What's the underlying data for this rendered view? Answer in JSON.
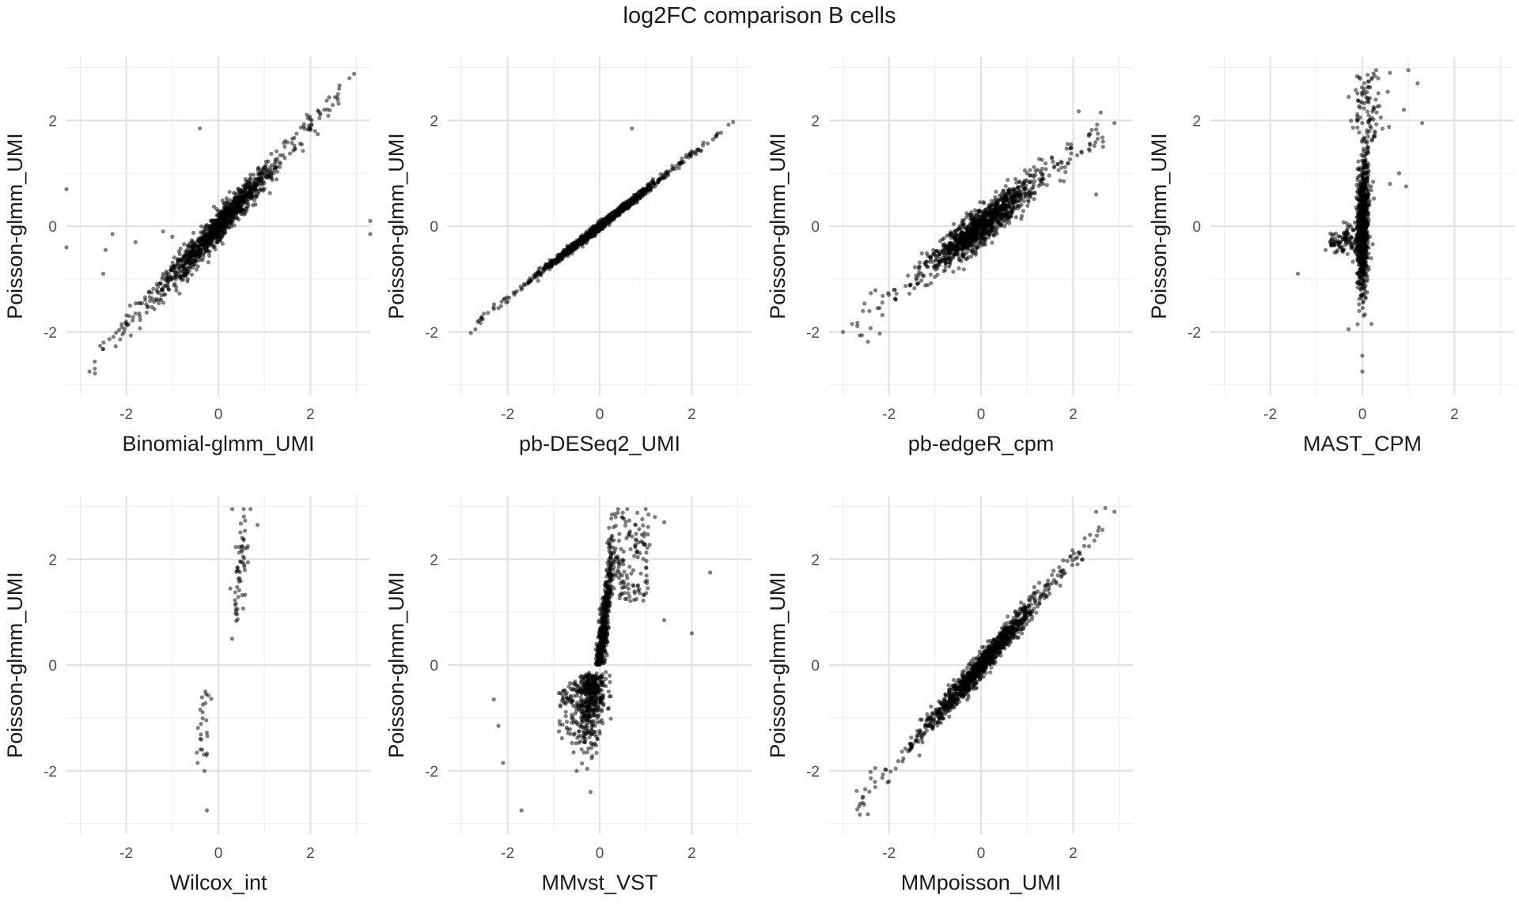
{
  "figure": {
    "title": "log2FC comparison B cells"
  },
  "chart_data": [
    {
      "type": "scatter",
      "xlabel": "Binomial-glmm_UMI",
      "ylabel": "Poisson-glmm_UMI",
      "xlim": [
        -3.3,
        3.3
      ],
      "ylim": [
        -3.2,
        3.2
      ],
      "xticks": [
        -2,
        0,
        2
      ],
      "yticks": [
        -2,
        0,
        2
      ],
      "grid": true,
      "points_shape": "linear",
      "slope": 0.95,
      "noise": 0.14,
      "points": [
        [
          -2.8,
          -2.75
        ],
        [
          -2.05,
          -2.0
        ],
        [
          -2.1,
          -1.85
        ],
        [
          -1.8,
          -1.65
        ],
        [
          -2.45,
          -0.45
        ],
        [
          -2.3,
          -0.15
        ],
        [
          -1.8,
          -0.3
        ],
        [
          -0.4,
          1.85
        ],
        [
          -3.3,
          0.7
        ],
        [
          -3.3,
          -0.4
        ],
        [
          3.3,
          0.1
        ],
        [
          3.3,
          -0.15
        ],
        [
          -2.5,
          -0.9
        ],
        [
          -1.2,
          -0.1
        ],
        [
          -1.0,
          -0.2
        ],
        [
          2.95,
          2.88
        ],
        [
          2.85,
          2.8
        ],
        [
          2.6,
          2.5
        ],
        [
          2.3,
          2.2
        ],
        [
          2.0,
          1.85
        ]
      ]
    },
    {
      "type": "scatter",
      "xlabel": "pb-DESeq2_UMI",
      "ylabel": "Poisson-glmm_UMI",
      "xlim": [
        -3.3,
        3.3
      ],
      "ylim": [
        -3.2,
        3.2
      ],
      "xticks": [
        -2,
        0,
        2
      ],
      "yticks": [
        -2,
        0,
        2
      ],
      "grid": true,
      "points_shape": "linear",
      "slope": 0.68,
      "noise": 0.04,
      "points": [
        [
          -2.8,
          -2.02
        ],
        [
          -2.7,
          -1.95
        ],
        [
          0.7,
          1.85
        ],
        [
          2.9,
          1.97
        ],
        [
          2.8,
          1.92
        ],
        [
          -2.2,
          -1.55
        ]
      ]
    },
    {
      "type": "scatter",
      "xlabel": "pb-edgeR_cpm",
      "ylabel": "Poisson-glmm_UMI",
      "xlim": [
        -3.3,
        3.3
      ],
      "ylim": [
        -3.2,
        3.2
      ],
      "xticks": [
        -2,
        0,
        2
      ],
      "yticks": [
        -2,
        0,
        2
      ],
      "grid": true,
      "points_shape": "linear",
      "slope": 0.68,
      "noise": 0.17,
      "points": [
        [
          -3.0,
          -2.0
        ],
        [
          -2.2,
          -2.03
        ],
        [
          -2.8,
          -1.85
        ],
        [
          2.6,
          2.15
        ],
        [
          2.9,
          1.95
        ],
        [
          2.5,
          0.6
        ],
        [
          2.65,
          1.6
        ],
        [
          -2.0,
          -1.3
        ],
        [
          1.8,
          0.85
        ]
      ]
    },
    {
      "type": "scatter",
      "xlabel": "MAST_CPM",
      "ylabel": "Poisson-glmm_UMI",
      "xlim": [
        -3.3,
        3.3
      ],
      "ylim": [
        -3.2,
        3.2
      ],
      "xticks": [
        -2,
        0,
        2
      ],
      "yticks": [
        -2,
        0,
        2
      ],
      "grid": true,
      "points_shape": "vertical",
      "points": [
        [
          -1.4,
          -0.9
        ],
        [
          -0.8,
          -0.45
        ],
        [
          -0.7,
          -0.3
        ],
        [
          -0.6,
          -0.5
        ],
        [
          0.0,
          -2.75
        ],
        [
          0.0,
          -2.45
        ],
        [
          -0.3,
          -1.95
        ],
        [
          0.2,
          -1.85
        ],
        [
          1.2,
          2.7
        ],
        [
          1.0,
          2.95
        ],
        [
          0.6,
          2.9
        ],
        [
          0.3,
          2.95
        ],
        [
          1.3,
          1.95
        ],
        [
          0.9,
          2.2
        ],
        [
          0.95,
          0.75
        ],
        [
          0.8,
          1.0
        ],
        [
          0.6,
          0.8
        ]
      ]
    },
    {
      "type": "scatter",
      "xlabel": "Wilcox_int",
      "ylabel": "Poisson-glmm_UMI",
      "xlim": [
        -3.3,
        3.3
      ],
      "ylim": [
        -3.2,
        3.2
      ],
      "xticks": [
        -2,
        0,
        2
      ],
      "yticks": [
        -2,
        0,
        2
      ],
      "grid": true,
      "points_shape": "two-clusters",
      "points": [
        [
          -0.25,
          -2.75
        ],
        [
          -0.3,
          -2.0
        ],
        [
          -0.45,
          -1.85
        ],
        [
          -0.35,
          -1.6
        ],
        [
          -0.28,
          -0.5
        ],
        [
          0.3,
          0.5
        ],
        [
          0.85,
          2.65
        ],
        [
          0.7,
          2.95
        ],
        [
          0.55,
          2.95
        ],
        [
          0.3,
          2.95
        ]
      ]
    },
    {
      "type": "scatter",
      "xlabel": "MMvst_VST",
      "ylabel": "Poisson-glmm_UMI",
      "xlim": [
        -3.3,
        3.3
      ],
      "ylim": [
        -3.2,
        3.2
      ],
      "xticks": [
        -2,
        0,
        2
      ],
      "yticks": [
        -2,
        0,
        2
      ],
      "grid": true,
      "points_shape": "s-curve",
      "points": [
        [
          -1.7,
          -2.75
        ],
        [
          -2.1,
          -1.85
        ],
        [
          -2.2,
          -1.15
        ],
        [
          -2.3,
          -0.65
        ],
        [
          -0.5,
          -2.0
        ],
        [
          -0.2,
          -2.4
        ],
        [
          2.4,
          1.75
        ],
        [
          2.0,
          0.6
        ],
        [
          1.4,
          0.85
        ],
        [
          1.4,
          2.7
        ],
        [
          1.2,
          2.8
        ],
        [
          1.0,
          2.95
        ],
        [
          0.6,
          2.95
        ],
        [
          0.4,
          2.95
        ]
      ]
    },
    {
      "type": "scatter",
      "xlabel": "MMpoisson_UMI",
      "ylabel": "Poisson-glmm_UMI",
      "xlim": [
        -3.3,
        3.3
      ],
      "ylim": [
        -3.2,
        3.2
      ],
      "xticks": [
        -2,
        0,
        2
      ],
      "yticks": [
        -2,
        0,
        2
      ],
      "grid": true,
      "points_shape": "linear",
      "slope": 1.0,
      "noise": 0.12,
      "points": [
        [
          -2.7,
          -2.38
        ],
        [
          -2.4,
          -2.02
        ],
        [
          -2.3,
          -1.95
        ],
        [
          1.7,
          1.85
        ],
        [
          2.9,
          2.9
        ],
        [
          2.7,
          2.97
        ],
        [
          2.5,
          2.9
        ]
      ]
    }
  ]
}
